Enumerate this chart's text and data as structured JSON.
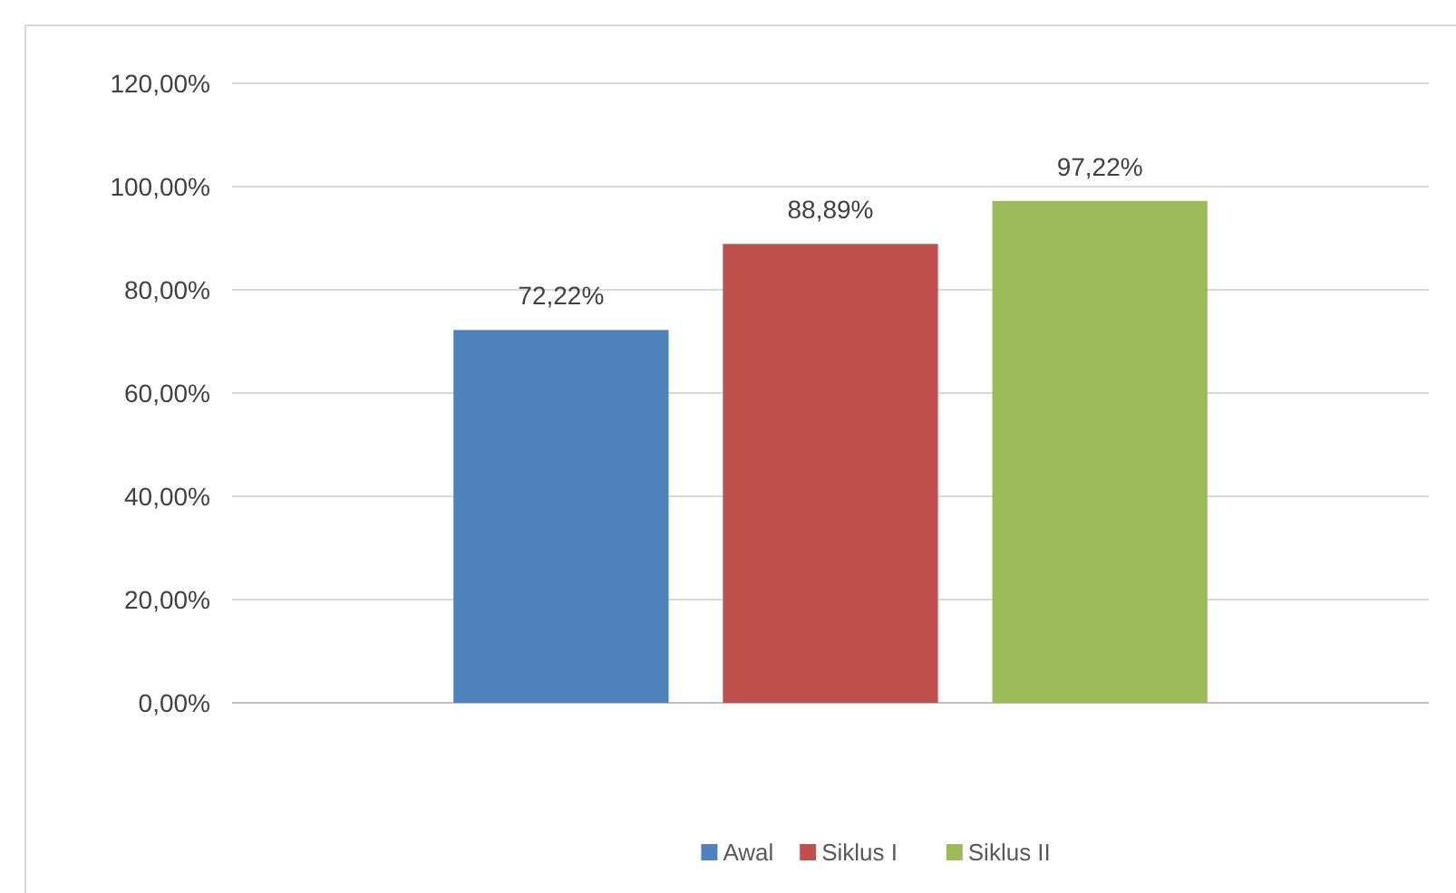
{
  "chart_data": {
    "type": "bar",
    "categories": [
      null
    ],
    "series": [
      {
        "name": "Awal",
        "color": "#4f81bd",
        "values": [
          72.22
        ],
        "value_labels": [
          "72,22%"
        ]
      },
      {
        "name": "Siklus I",
        "color": "#c0504d",
        "values": [
          88.89
        ],
        "value_labels": [
          "88,89%"
        ]
      },
      {
        "name": "Siklus II",
        "color": "#9bbb59",
        "values": [
          97.22
        ],
        "value_labels": [
          "97,22%"
        ]
      }
    ],
    "ylim": [
      0,
      120
    ],
    "yticks": [
      {
        "value": 0,
        "label": "0,00%"
      },
      {
        "value": 20,
        "label": "20,00%"
      },
      {
        "value": 40,
        "label": "40,00%"
      },
      {
        "value": 60,
        "label": "60,00%"
      },
      {
        "value": 80,
        "label": "80,00%"
      },
      {
        "value": 100,
        "label": "100,00%"
      },
      {
        "value": 120,
        "label": "120,00%"
      }
    ],
    "grid": "y",
    "legend": "bottom"
  }
}
